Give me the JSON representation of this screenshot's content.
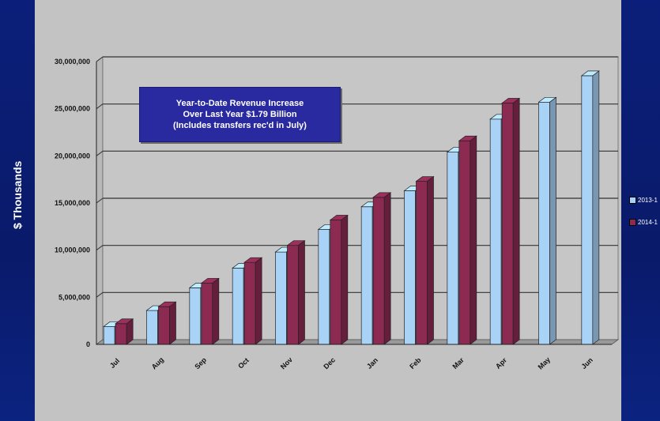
{
  "colors": {
    "series_1": "#a9d2f7",
    "series_2": "#8c2a52",
    "panel": "#c3c3c3",
    "background": "#0a1a6a",
    "annotation_bg": "#2a2aa0"
  },
  "annotation": {
    "line1": "Year-to-Date Revenue Increase",
    "line2": "Over Last Year $1.79 Billion",
    "line3": "(Includes transfers rec'd in July)"
  },
  "legend": {
    "items": [
      {
        "label": "2013-1"
      },
      {
        "label": "2014-1"
      }
    ]
  },
  "chart_data": {
    "type": "bar",
    "ylabel": "$ Thousands",
    "ylim": [
      0,
      30000000
    ],
    "yticks": [
      0,
      5000000,
      10000000,
      15000000,
      20000000,
      25000000,
      30000000
    ],
    "ytick_labels": [
      "0",
      "5,000,000",
      "10,000,000",
      "15,000,000",
      "20,000,000",
      "25,000,000",
      "30,000,000"
    ],
    "grid": true,
    "legend_position": "right",
    "categories": [
      "Jul",
      "Aug",
      "Sep",
      "Oct",
      "Nov",
      "Dec",
      "Jan",
      "Feb",
      "Mar",
      "Apr",
      "May",
      "Jun"
    ],
    "series": [
      {
        "name": "2013-1",
        "values": [
          1900000,
          3600000,
          6000000,
          8100000,
          9800000,
          12200000,
          14600000,
          16300000,
          20400000,
          23900000,
          25700000,
          28500000
        ]
      },
      {
        "name": "2014-1",
        "values": [
          2200000,
          4000000,
          6500000,
          8700000,
          10500000,
          13200000,
          15600000,
          17300000,
          21600000,
          25600000,
          null,
          null
        ]
      }
    ]
  }
}
